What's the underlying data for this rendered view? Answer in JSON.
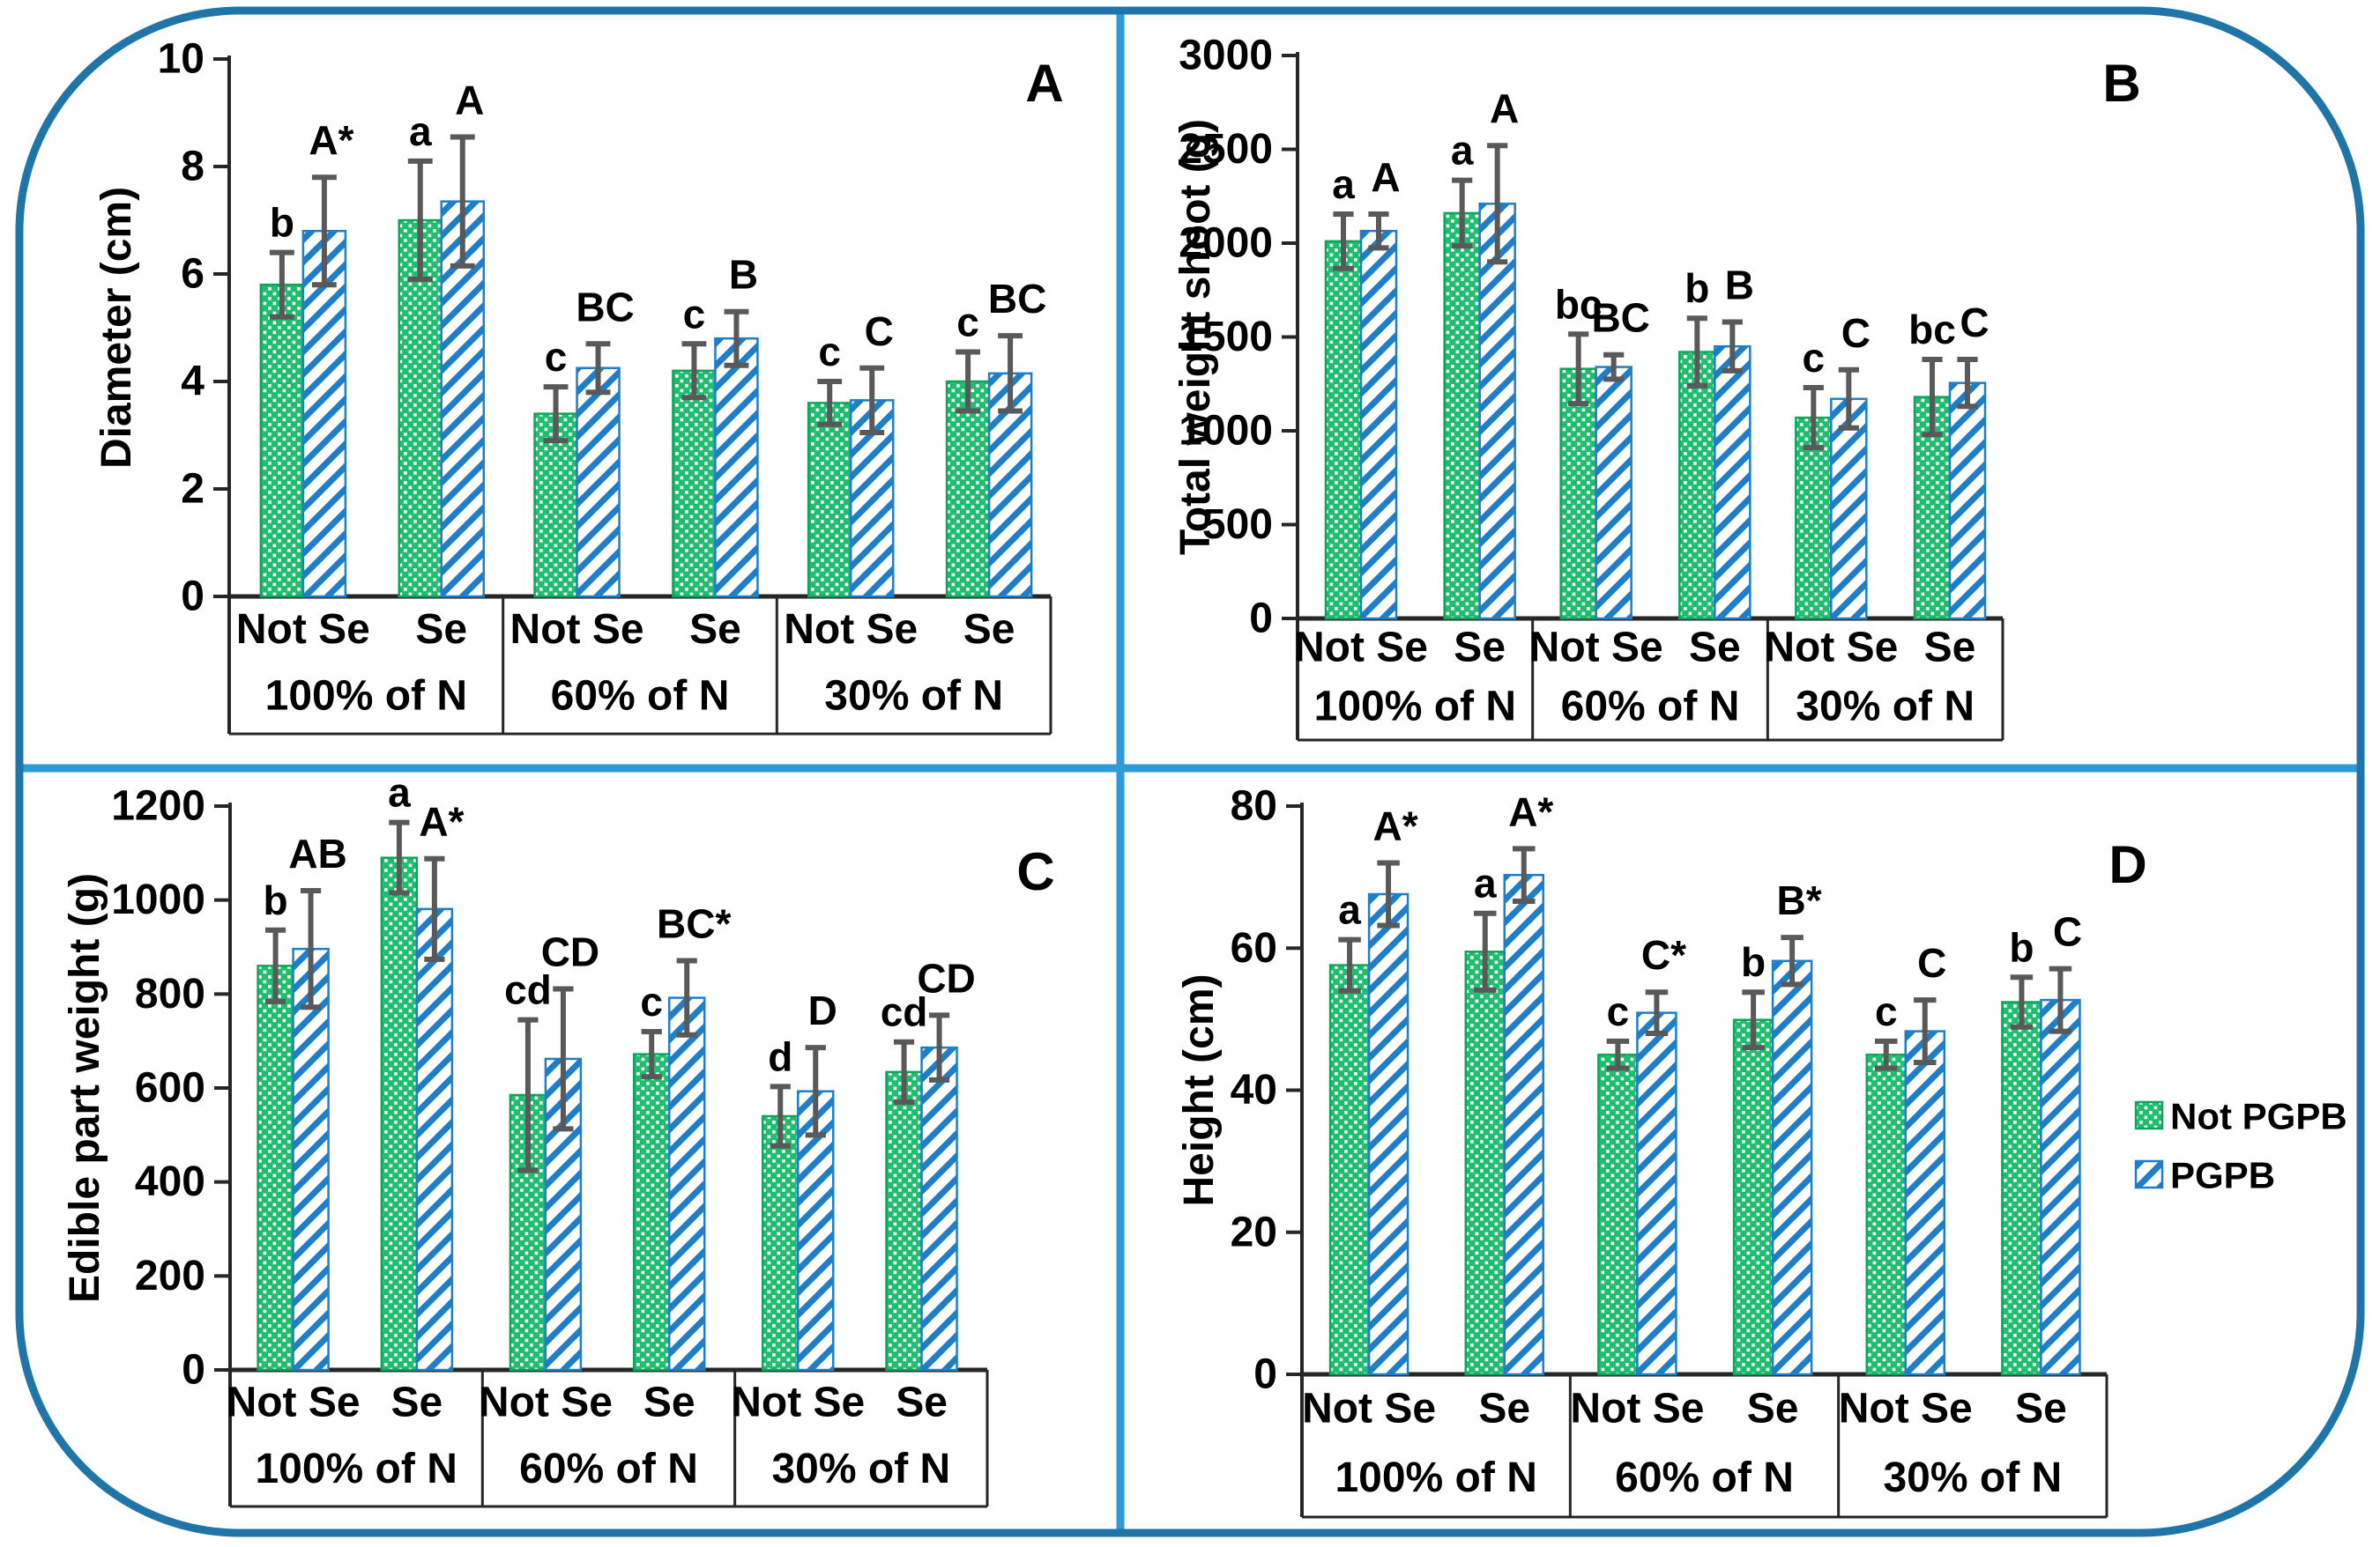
{
  "figure": {
    "background": "#FFFFFF",
    "border_color": "#1F74A8",
    "divider_color": "#2E9AD7"
  },
  "colors": {
    "green_fill": "#1FBE6F",
    "green_stroke": "#0FA35C",
    "blue_stroke": "#1E7EC8",
    "error_bar": "#595959",
    "axis": "#262626",
    "text": "#000000"
  },
  "legend": {
    "items": [
      {
        "label": "Not PGPB",
        "swatch": "green-dotted-icon"
      },
      {
        "label": "PGPB",
        "swatch": "blue-hatched-icon"
      }
    ]
  },
  "chart_data": [
    {
      "type": "bar",
      "panel": "A",
      "ylabel": "Diameter (cm)",
      "ylim": [
        0,
        10
      ],
      "yticks": [
        0,
        2,
        4,
        6,
        8,
        10
      ],
      "grid": false,
      "groups": [
        "100% of N",
        "60% of N",
        "30% of N"
      ],
      "subgroups": [
        "Not Se",
        "Se"
      ],
      "series": [
        {
          "name": "Not PGPB",
          "values": [
            5.8,
            7.0,
            3.4,
            4.2,
            3.6,
            4.0
          ],
          "errors": [
            0.6,
            1.1,
            0.5,
            0.5,
            0.4,
            0.55
          ],
          "letters": [
            "b",
            "a",
            "c",
            "c",
            "c",
            "c"
          ]
        },
        {
          "name": "PGPB",
          "values": [
            6.8,
            7.35,
            4.25,
            4.8,
            3.65,
            4.15
          ],
          "errors": [
            1.0,
            1.2,
            0.45,
            0.5,
            0.6,
            0.7
          ],
          "letters": [
            "A*",
            "A",
            "BC",
            "B",
            "C",
            "BC"
          ]
        }
      ]
    },
    {
      "type": "bar",
      "panel": "B",
      "ylabel": "Total weight shoot (g)",
      "ylim": [
        0,
        3000
      ],
      "yticks": [
        0,
        500,
        1000,
        1500,
        2000,
        2500,
        3000
      ],
      "grid": false,
      "groups": [
        "100% of N",
        "60% of N",
        "30% of N"
      ],
      "subgroups": [
        "Not Se",
        "Se"
      ],
      "series": [
        {
          "name": "Not PGPB",
          "values": [
            2010,
            2160,
            1330,
            1420,
            1070,
            1180
          ],
          "errors": [
            145,
            175,
            185,
            180,
            160,
            200
          ],
          "letters": [
            "a",
            "a",
            "bc",
            "b",
            "c",
            "bc"
          ]
        },
        {
          "name": "PGPB",
          "values": [
            2065,
            2210,
            1340,
            1450,
            1170,
            1255
          ],
          "errors": [
            90,
            310,
            65,
            130,
            155,
            125
          ],
          "letters": [
            "A",
            "A",
            "BC",
            "B",
            "C",
            "C"
          ]
        }
      ]
    },
    {
      "type": "bar",
      "panel": "C",
      "ylabel": "Edible part weight (g)",
      "ylim": [
        0,
        1200
      ],
      "yticks": [
        0,
        200,
        400,
        600,
        800,
        1000,
        1200
      ],
      "grid": false,
      "groups": [
        "100% of N",
        "60% of N",
        "30% of N"
      ],
      "subgroups": [
        "Not Se",
        "Se"
      ],
      "series": [
        {
          "name": "Not PGPB",
          "values": [
            860,
            1090,
            585,
            672,
            540,
            634
          ],
          "errors": [
            76,
            75,
            160,
            48,
            63,
            64
          ],
          "letters": [
            "b",
            "a",
            "cd",
            "c",
            "d",
            "cd"
          ]
        },
        {
          "name": "PGPB",
          "values": [
            896,
            981,
            662,
            792,
            593,
            686
          ],
          "errors": [
            124,
            107,
            149,
            79,
            93,
            69
          ],
          "letters": [
            "AB",
            "A*",
            "CD",
            "BC*",
            "D",
            "CD"
          ]
        }
      ]
    },
    {
      "type": "bar",
      "panel": "D",
      "ylabel": "Height (cm)",
      "ylim": [
        0,
        80
      ],
      "yticks": [
        0,
        20,
        40,
        60,
        80
      ],
      "grid": false,
      "groups": [
        "100% of N",
        "60% of N",
        "30% of N"
      ],
      "subgroups": [
        "Not Se",
        "Se"
      ],
      "series": [
        {
          "name": "Not PGPB",
          "values": [
            57.6,
            59.5,
            45.0,
            49.9,
            45.0,
            52.4
          ],
          "errors": [
            3.6,
            5.4,
            1.9,
            3.9,
            1.9,
            3.5
          ],
          "letters": [
            "a",
            "a",
            "c",
            "b",
            "c",
            "b"
          ]
        },
        {
          "name": "PGPB",
          "values": [
            67.6,
            70.3,
            50.9,
            58.2,
            48.3,
            52.7
          ],
          "errors": [
            4.4,
            3.7,
            2.9,
            3.3,
            4.4,
            4.4
          ],
          "letters": [
            "A*",
            "A*",
            "C*",
            "B*",
            "C",
            "C"
          ]
        }
      ]
    }
  ]
}
